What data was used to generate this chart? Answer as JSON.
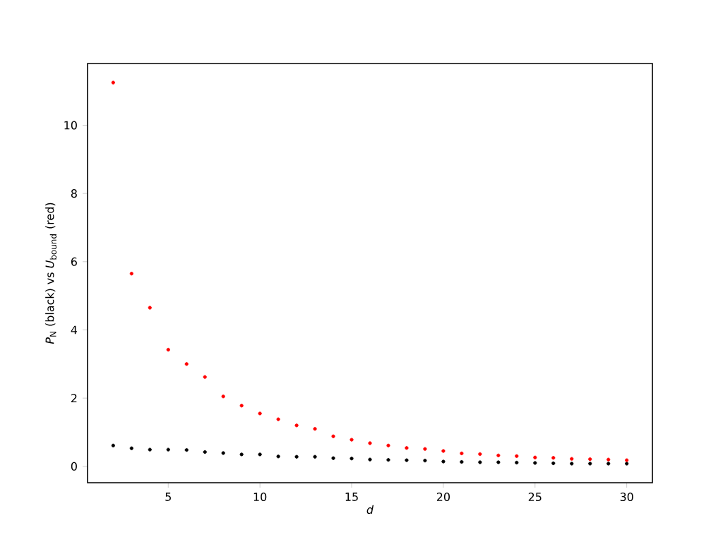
{
  "chart_data": {
    "type": "scatter",
    "xlabel": "*d*",
    "ylabel": "*P*$_{N}$ (black) vs *U*$_{bound}$ (red)",
    "x": [
      2,
      3,
      4,
      5,
      6,
      7,
      8,
      9,
      10,
      11,
      12,
      13,
      14,
      15,
      16,
      17,
      18,
      19,
      20,
      21,
      22,
      23,
      24,
      25,
      26,
      27,
      28,
      29,
      30
    ],
    "series": [
      {
        "color": "#000000",
        "values": [
          0.61,
          0.53,
          0.49,
          0.49,
          0.48,
          0.42,
          0.39,
          0.35,
          0.35,
          0.29,
          0.28,
          0.28,
          0.24,
          0.23,
          0.2,
          0.19,
          0.18,
          0.17,
          0.14,
          0.13,
          0.12,
          0.12,
          0.11,
          0.1,
          0.09,
          0.08,
          0.08,
          0.08,
          0.08
        ]
      },
      {
        "color": "#ff0000",
        "values": [
          11.25,
          5.65,
          4.65,
          3.42,
          3.0,
          2.62,
          2.05,
          1.78,
          1.55,
          1.38,
          1.2,
          1.1,
          0.88,
          0.78,
          0.68,
          0.61,
          0.54,
          0.51,
          0.45,
          0.38,
          0.36,
          0.32,
          0.3,
          0.26,
          0.25,
          0.22,
          0.21,
          0.2,
          0.18
        ]
      }
    ],
    "xlim": [
      0.6,
      31.4
    ],
    "ylim": [
      -0.48,
      11.81
    ],
    "xticks": [
      5,
      10,
      15,
      20,
      25,
      30
    ],
    "yticks": [
      0,
      2,
      4,
      6,
      8,
      10
    ],
    "grid": false
  }
}
